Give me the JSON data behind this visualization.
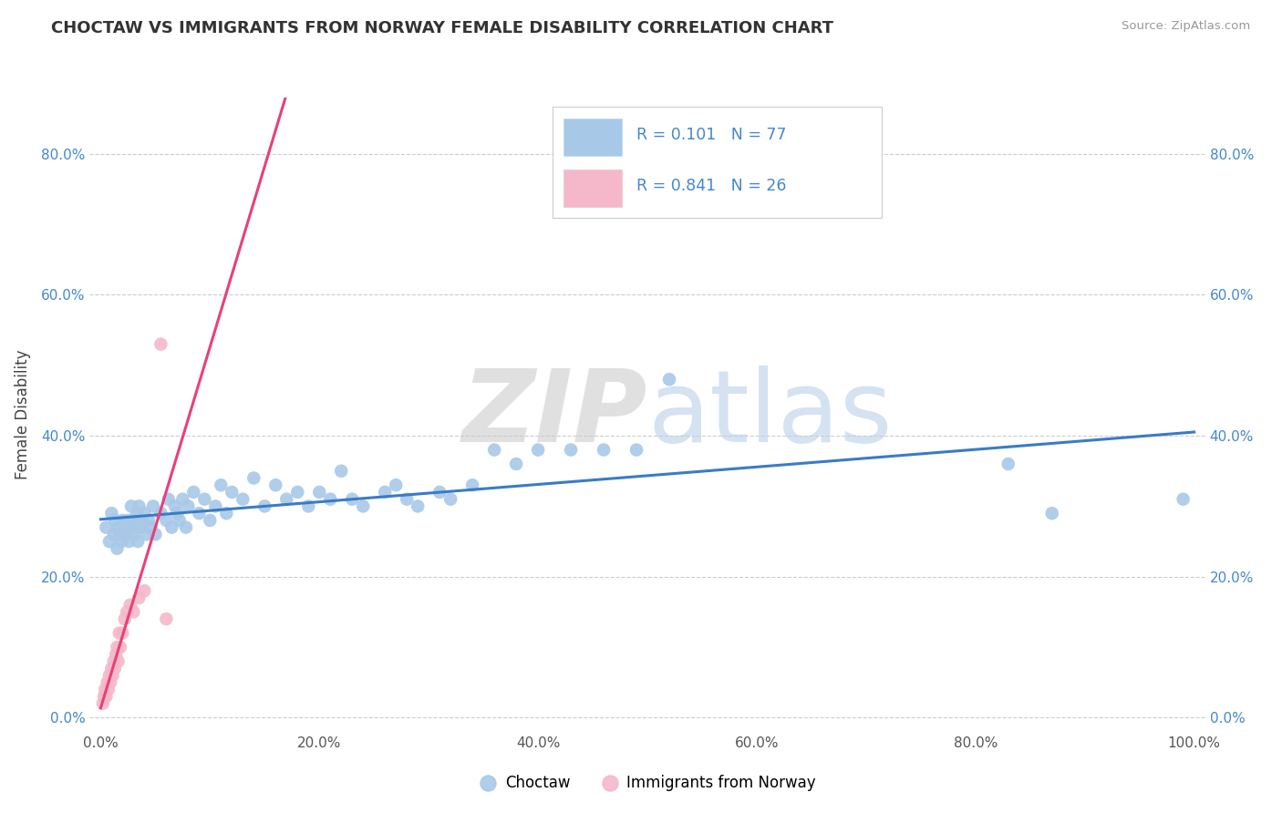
{
  "title": "CHOCTAW VS IMMIGRANTS FROM NORWAY FEMALE DISABILITY CORRELATION CHART",
  "source": "Source: ZipAtlas.com",
  "ylabel": "Female Disability",
  "xlabel": "",
  "xlim": [
    -0.01,
    1.01
  ],
  "ylim": [
    -0.02,
    0.88
  ],
  "xticks": [
    0.0,
    0.2,
    0.4,
    0.6,
    0.8,
    1.0
  ],
  "yticks": [
    0.0,
    0.2,
    0.4,
    0.6,
    0.8
  ],
  "xtick_labels": [
    "0.0%",
    "20.0%",
    "40.0%",
    "60.0%",
    "80.0%",
    "100.0%"
  ],
  "ytick_labels": [
    "0.0%",
    "20.0%",
    "40.0%",
    "60.0%",
    "80.0%"
  ],
  "right_ytick_labels": [
    "0.0%",
    "20.0%",
    "40.0%",
    "60.0%",
    "80.0%"
  ],
  "choctaw_R": "0.101",
  "choctaw_N": "77",
  "norway_R": "0.841",
  "norway_N": "26",
  "choctaw_color": "#a8c8e8",
  "norway_color": "#f4b8ca",
  "choctaw_line_color": "#3a7bc8",
  "norway_line_color": "#e8407a",
  "legend_choctaw_label": "Choctaw",
  "legend_norway_label": "Immigrants from Norway",
  "watermark_zip": "ZIP",
  "watermark_atlas": "atlas",
  "choctaw_x": [
    0.005,
    0.008,
    0.01,
    0.012,
    0.013,
    0.015,
    0.016,
    0.018,
    0.019,
    0.02,
    0.022,
    0.024,
    0.025,
    0.026,
    0.027,
    0.028,
    0.03,
    0.031,
    0.032,
    0.033,
    0.034,
    0.035,
    0.037,
    0.038,
    0.04,
    0.042,
    0.044,
    0.046,
    0.048,
    0.05,
    0.055,
    0.06,
    0.062,
    0.065,
    0.068,
    0.07,
    0.072,
    0.075,
    0.078,
    0.08,
    0.085,
    0.09,
    0.095,
    0.1,
    0.105,
    0.11,
    0.115,
    0.12,
    0.13,
    0.14,
    0.15,
    0.16,
    0.17,
    0.18,
    0.19,
    0.2,
    0.21,
    0.22,
    0.23,
    0.24,
    0.26,
    0.27,
    0.28,
    0.29,
    0.31,
    0.32,
    0.34,
    0.36,
    0.38,
    0.4,
    0.43,
    0.46,
    0.49,
    0.52,
    0.83,
    0.87,
    0.99
  ],
  "choctaw_y": [
    0.27,
    0.25,
    0.29,
    0.26,
    0.28,
    0.24,
    0.27,
    0.26,
    0.25,
    0.28,
    0.27,
    0.26,
    0.28,
    0.25,
    0.27,
    0.3,
    0.26,
    0.28,
    0.27,
    0.29,
    0.25,
    0.3,
    0.27,
    0.28,
    0.29,
    0.26,
    0.28,
    0.27,
    0.3,
    0.26,
    0.29,
    0.28,
    0.31,
    0.27,
    0.3,
    0.29,
    0.28,
    0.31,
    0.27,
    0.3,
    0.32,
    0.29,
    0.31,
    0.28,
    0.3,
    0.33,
    0.29,
    0.32,
    0.31,
    0.34,
    0.3,
    0.33,
    0.31,
    0.32,
    0.3,
    0.32,
    0.31,
    0.35,
    0.31,
    0.3,
    0.32,
    0.33,
    0.31,
    0.3,
    0.32,
    0.31,
    0.33,
    0.38,
    0.36,
    0.38,
    0.38,
    0.38,
    0.38,
    0.48,
    0.36,
    0.29,
    0.31
  ],
  "norway_x": [
    0.002,
    0.003,
    0.004,
    0.005,
    0.006,
    0.007,
    0.008,
    0.009,
    0.01,
    0.011,
    0.012,
    0.013,
    0.014,
    0.015,
    0.016,
    0.017,
    0.018,
    0.02,
    0.022,
    0.024,
    0.027,
    0.03,
    0.035,
    0.04,
    0.055,
    0.06
  ],
  "norway_y": [
    0.02,
    0.03,
    0.04,
    0.03,
    0.05,
    0.04,
    0.06,
    0.05,
    0.07,
    0.06,
    0.08,
    0.07,
    0.09,
    0.1,
    0.08,
    0.12,
    0.1,
    0.12,
    0.14,
    0.15,
    0.16,
    0.15,
    0.17,
    0.18,
    0.53,
    0.14
  ]
}
